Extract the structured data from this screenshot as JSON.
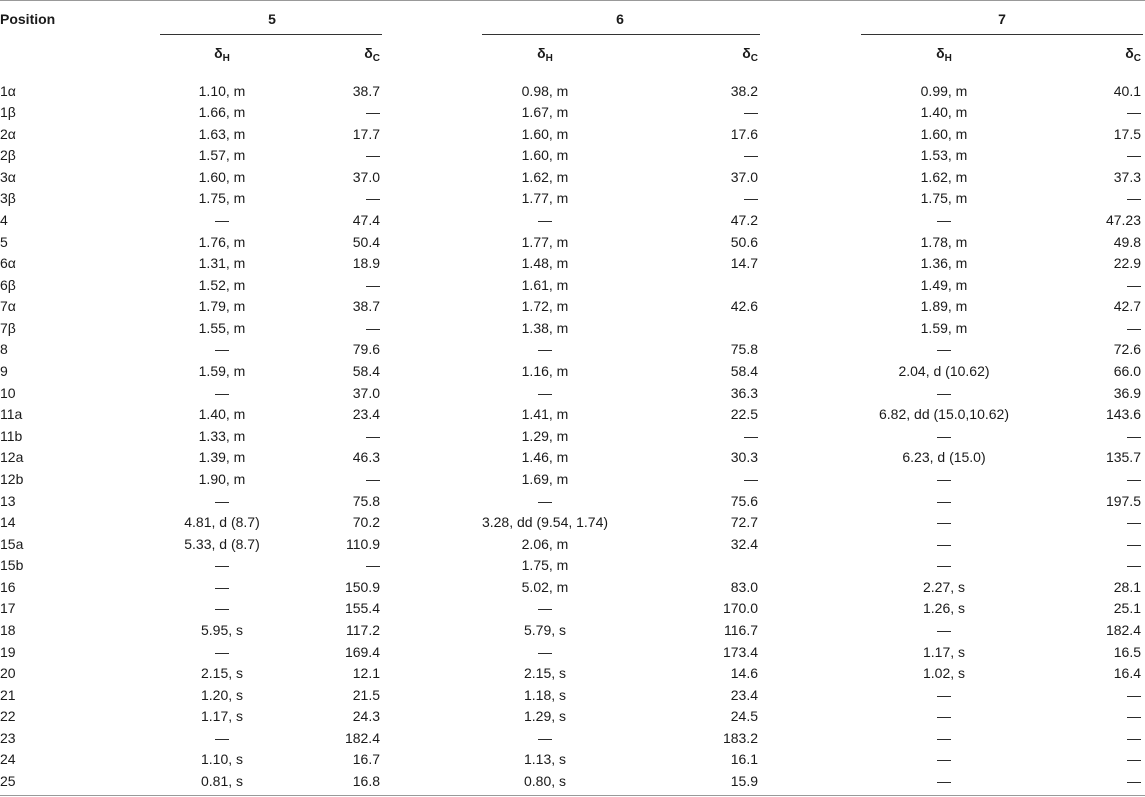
{
  "header": {
    "position_label": "Position",
    "groups": [
      "5",
      "6",
      "7"
    ],
    "sub_symbol": "δ",
    "sub_h": "H",
    "sub_c": "C"
  },
  "rows": [
    [
      "1α",
      "1.10, m",
      "38.7",
      "0.98, m",
      "38.2",
      "0.99, m",
      "40.1"
    ],
    [
      "1β",
      "1.66, m",
      "—",
      "1.67, m",
      "—",
      "1.40, m",
      "—"
    ],
    [
      "2α",
      "1.63, m",
      "17.7",
      "1.60, m",
      "17.6",
      "1.60, m",
      "17.5"
    ],
    [
      "2β",
      "1.57, m",
      "—",
      "1.60, m",
      "—",
      "1.53, m",
      "—"
    ],
    [
      "3α",
      "1.60, m",
      "37.0",
      "1.62, m",
      "37.0",
      "1.62, m",
      "37.3"
    ],
    [
      "3β",
      "1.75, m",
      "—",
      "1.77, m",
      "—",
      "1.75, m",
      "—"
    ],
    [
      "4",
      "—",
      "47.4",
      "—",
      "47.2",
      "—",
      "47.23"
    ],
    [
      "5",
      "1.76, m",
      "50.4",
      "1.77, m",
      "50.6",
      "1.78, m",
      "49.8"
    ],
    [
      "6α",
      "1.31, m",
      "18.9",
      "1.48, m",
      "14.7",
      "1.36, m",
      "22.9"
    ],
    [
      "6β",
      "1.52, m",
      "—",
      "1.61, m",
      "",
      "1.49, m",
      "—"
    ],
    [
      "7α",
      "1.79, m",
      "38.7",
      "1.72, m",
      "42.6",
      "1.89, m",
      "42.7"
    ],
    [
      "7β",
      "1.55, m",
      "—",
      "1.38, m",
      "",
      "1.59, m",
      "—"
    ],
    [
      "8",
      "—",
      "79.6",
      "—",
      "75.8",
      "—",
      "72.6"
    ],
    [
      "9",
      "1.59, m",
      "58.4",
      "1.16, m",
      "58.4",
      "2.04, d (10.62)",
      "66.0"
    ],
    [
      "10",
      "—",
      "37.0",
      "—",
      "36.3",
      "—",
      "36.9"
    ],
    [
      "11a",
      "1.40, m",
      "23.4",
      "1.41, m",
      "22.5",
      "6.82, dd (15.0,10.62)",
      "143.6"
    ],
    [
      "11b",
      "1.33, m",
      "—",
      "1.29, m",
      "—",
      "—",
      "—"
    ],
    [
      "12a",
      "1.39, m",
      "46.3",
      "1.46, m",
      "30.3",
      "6.23, d (15.0)",
      "135.7"
    ],
    [
      "12b",
      "1.90, m",
      "—",
      "1.69, m",
      "—",
      "—",
      "—"
    ],
    [
      "13",
      "—",
      "75.8",
      "—",
      "75.6",
      "—",
      "197.5"
    ],
    [
      "14",
      "4.81, d (8.7)",
      "70.2",
      "3.28, dd (9.54, 1.74)",
      "72.7",
      "—",
      "—"
    ],
    [
      "15a",
      "5.33, d (8.7)",
      "110.9",
      "2.06, m",
      "32.4",
      "—",
      "—"
    ],
    [
      "15b",
      "—",
      "—",
      "1.75, m",
      "",
      "—",
      "—"
    ],
    [
      "16",
      "—",
      "150.9",
      "5.02, m",
      "83.0",
      "2.27, s",
      "28.1"
    ],
    [
      "17",
      "—",
      "155.4",
      "—",
      "170.0",
      "1.26, s",
      "25.1"
    ],
    [
      "18",
      "5.95, s",
      "117.2",
      "5.79, s",
      "116.7",
      "—",
      "182.4"
    ],
    [
      "19",
      "—",
      "169.4",
      "—",
      "173.4",
      "1.17, s",
      "16.5"
    ],
    [
      "20",
      "2.15, s",
      "12.1",
      "2.15, s",
      "14.6",
      "1.02, s",
      "16.4"
    ],
    [
      "21",
      "1.20, s",
      "21.5",
      "1.18, s",
      "23.4",
      "—",
      "—"
    ],
    [
      "22",
      "1.17, s",
      "24.3",
      "1.29, s",
      "24.5",
      "—",
      "—"
    ],
    [
      "23",
      "—",
      "182.4",
      "—",
      "183.2",
      "—",
      "—"
    ],
    [
      "24",
      "1.10, s",
      "16.7",
      "1.13, s",
      "16.1",
      "—",
      "—"
    ],
    [
      "25",
      "0.81, s",
      "16.8",
      "0.80, s",
      "15.9",
      "—",
      "—"
    ]
  ]
}
